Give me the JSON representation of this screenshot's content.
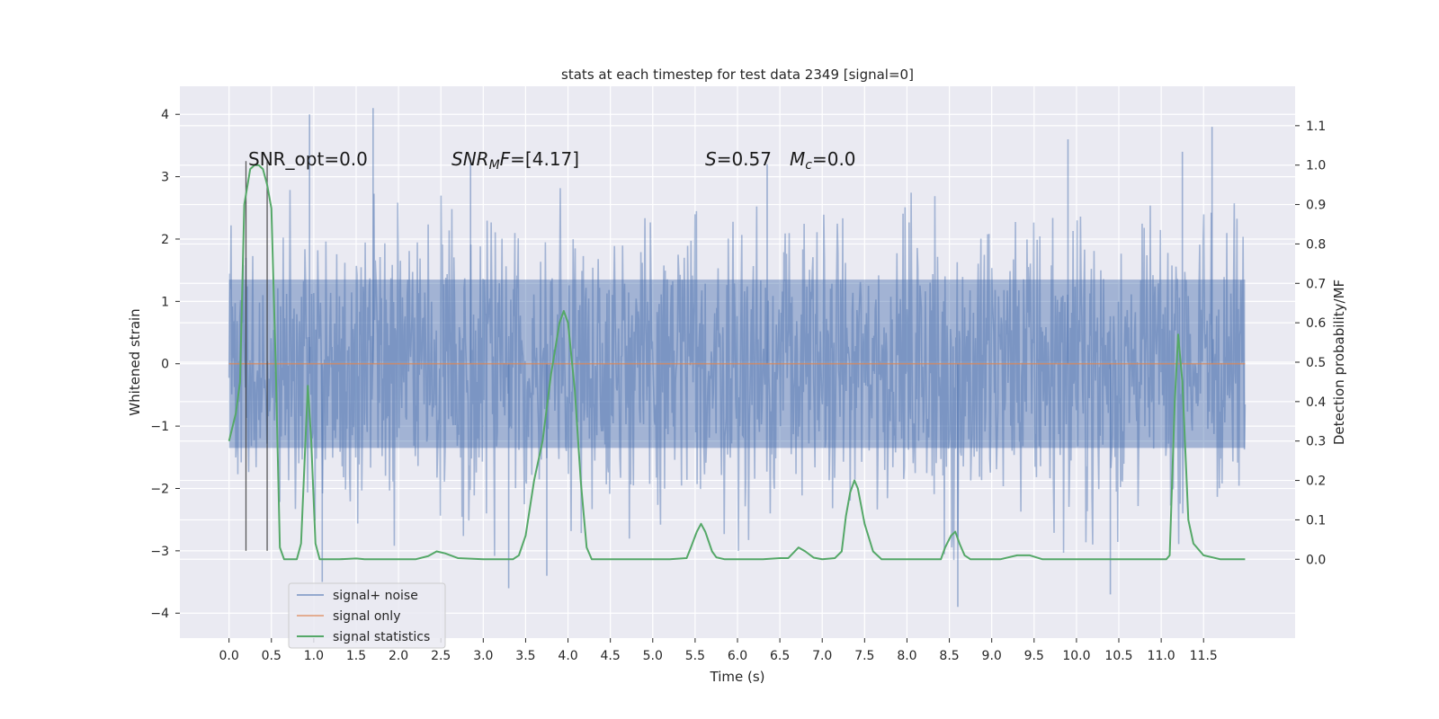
{
  "chart_data": {
    "type": "line",
    "title": "stats at each timestep for test data 2349 [signal=0]",
    "xlabel": "Time (s)",
    "ylabel": "Whitened strain",
    "y2label": "Detection probability/MF",
    "xlim": [
      -0.58,
      12.58
    ],
    "ylim": [
      -4.4,
      4.45
    ],
    "y2lim": [
      -0.2,
      1.2
    ],
    "x_ticks": [
      "0.0",
      "0.5",
      "1.0",
      "1.5",
      "2.0",
      "2.5",
      "3.0",
      "3.5",
      "4.0",
      "4.5",
      "5.0",
      "5.5",
      "6.0",
      "6.5",
      "7.0",
      "7.5",
      "8.0",
      "8.5",
      "9.0",
      "9.5",
      "10.0",
      "10.5",
      "11.0",
      "11.5"
    ],
    "y_ticks": [
      "4",
      "3",
      "2",
      "1",
      "0",
      "−1",
      "−2",
      "−3",
      "−4"
    ],
    "y2_ticks": [
      "1.1",
      "1.0",
      "0.9",
      "0.8",
      "0.7",
      "0.6",
      "0.5",
      "0.4",
      "0.3",
      "0.2",
      "0.1",
      "0.0"
    ],
    "grid": true,
    "legend_position": "lower-left",
    "annotations": {
      "snr_opt": "SNR_opt=0.0",
      "snr_mf_sym": "SNR",
      "snr_mf_sub": "M",
      "snr_mf_tail": "F",
      "snr_mf_value": "=[4.17]",
      "s_sym": "S",
      "s_value": "=0.57",
      "mc_sym": "M",
      "mc_sub": "c",
      "mc_value": "=0.0"
    },
    "series": [
      {
        "name": "signal+ noise",
        "color": "#4c72b0",
        "note": "dense noise trace between roughly -3.9 and 4.1 over 0–12 s",
        "envelope_upper": [
          [
            0.0,
            2.9
          ],
          [
            0.5,
            2.6
          ],
          [
            1.0,
            3.1
          ],
          [
            1.5,
            3.0
          ],
          [
            2.0,
            3.1
          ],
          [
            2.5,
            3.0
          ],
          [
            3.0,
            2.8
          ],
          [
            3.5,
            2.6
          ],
          [
            4.0,
            2.9
          ],
          [
            4.5,
            2.8
          ],
          [
            5.0,
            2.7
          ],
          [
            5.5,
            2.8
          ],
          [
            6.0,
            3.0
          ],
          [
            6.5,
            2.9
          ],
          [
            7.0,
            3.0
          ],
          [
            7.5,
            2.6
          ],
          [
            8.0,
            2.8
          ],
          [
            8.5,
            2.8
          ],
          [
            9.0,
            2.9
          ],
          [
            9.5,
            2.9
          ],
          [
            10.0,
            2.8
          ],
          [
            10.5,
            2.9
          ],
          [
            11.0,
            3.1
          ],
          [
            11.5,
            3.1
          ],
          [
            11.99,
            3.2
          ]
        ],
        "envelope_lower": [
          [
            0.0,
            -2.8
          ],
          [
            0.5,
            -2.7
          ],
          [
            1.0,
            -3.1
          ],
          [
            1.5,
            -3.0
          ],
          [
            2.0,
            -3.0
          ],
          [
            2.5,
            -3.0
          ],
          [
            3.0,
            -3.3
          ],
          [
            3.5,
            -3.2
          ],
          [
            4.0,
            -2.9
          ],
          [
            4.5,
            -2.9
          ],
          [
            5.0,
            -3.2
          ],
          [
            5.5,
            -2.8
          ],
          [
            6.0,
            -3.0
          ],
          [
            6.5,
            -3.2
          ],
          [
            7.0,
            -3.1
          ],
          [
            7.5,
            -2.9
          ],
          [
            8.0,
            -3.0
          ],
          [
            8.5,
            -3.9
          ],
          [
            9.0,
            -3.3
          ],
          [
            9.5,
            -3.0
          ],
          [
            10.0,
            -3.1
          ],
          [
            10.5,
            -3.7
          ],
          [
            11.0,
            -3.1
          ],
          [
            11.5,
            -2.8
          ],
          [
            11.99,
            -2.2
          ]
        ],
        "spikes": [
          [
            0.95,
            4.0
          ],
          [
            1.7,
            4.1
          ],
          [
            1.1,
            -3.5
          ],
          [
            3.3,
            -3.6
          ],
          [
            3.75,
            -3.4
          ],
          [
            8.6,
            -3.9
          ],
          [
            10.4,
            -3.7
          ],
          [
            11.6,
            3.8
          ],
          [
            11.25,
            3.4
          ],
          [
            9.9,
            3.6
          ],
          [
            6.35,
            3.2
          ],
          [
            2.85,
            3.3
          ]
        ]
      },
      {
        "name": "signal only",
        "color": "#dd8452",
        "x": [
          0.0,
          11.99
        ],
        "y": [
          0.0,
          0.0
        ]
      },
      {
        "name": "signal statistics",
        "color": "#55a868",
        "axis": "right",
        "points": [
          [
            0.0,
            0.3
          ],
          [
            0.08,
            0.37
          ],
          [
            0.13,
            0.45
          ],
          [
            0.18,
            0.9
          ],
          [
            0.25,
            0.99
          ],
          [
            0.3,
            1.0
          ],
          [
            0.35,
            1.0
          ],
          [
            0.4,
            0.99
          ],
          [
            0.45,
            0.95
          ],
          [
            0.5,
            0.89
          ],
          [
            0.55,
            0.5
          ],
          [
            0.6,
            0.03
          ],
          [
            0.65,
            0.0
          ],
          [
            0.75,
            0.0
          ],
          [
            0.8,
            0.0
          ],
          [
            0.85,
            0.04
          ],
          [
            0.93,
            0.44
          ],
          [
            0.97,
            0.3
          ],
          [
            1.02,
            0.04
          ],
          [
            1.07,
            0.0
          ],
          [
            1.3,
            0.0
          ],
          [
            1.5,
            0.002
          ],
          [
            1.6,
            0.0
          ],
          [
            2.0,
            0.0
          ],
          [
            2.2,
            0.0
          ],
          [
            2.35,
            0.008
          ],
          [
            2.45,
            0.02
          ],
          [
            2.55,
            0.015
          ],
          [
            2.7,
            0.003
          ],
          [
            3.0,
            0.0
          ],
          [
            3.35,
            0.0
          ],
          [
            3.42,
            0.01
          ],
          [
            3.5,
            0.06
          ],
          [
            3.6,
            0.2
          ],
          [
            3.7,
            0.3
          ],
          [
            3.8,
            0.47
          ],
          [
            3.9,
            0.6
          ],
          [
            3.95,
            0.63
          ],
          [
            4.0,
            0.6
          ],
          [
            4.08,
            0.43
          ],
          [
            4.15,
            0.2
          ],
          [
            4.22,
            0.03
          ],
          [
            4.28,
            0.0
          ],
          [
            4.4,
            0.0
          ],
          [
            5.2,
            0.0
          ],
          [
            5.4,
            0.003
          ],
          [
            5.45,
            0.03
          ],
          [
            5.52,
            0.07
          ],
          [
            5.57,
            0.09
          ],
          [
            5.62,
            0.07
          ],
          [
            5.7,
            0.02
          ],
          [
            5.75,
            0.005
          ],
          [
            5.85,
            0.0
          ],
          [
            6.3,
            0.0
          ],
          [
            6.5,
            0.003
          ],
          [
            6.6,
            0.003
          ],
          [
            6.72,
            0.03
          ],
          [
            6.8,
            0.02
          ],
          [
            6.9,
            0.004
          ],
          [
            7.0,
            0.0
          ],
          [
            7.15,
            0.003
          ],
          [
            7.23,
            0.02
          ],
          [
            7.28,
            0.11
          ],
          [
            7.33,
            0.17
          ],
          [
            7.38,
            0.2
          ],
          [
            7.42,
            0.18
          ],
          [
            7.5,
            0.09
          ],
          [
            7.6,
            0.02
          ],
          [
            7.7,
            0.0
          ],
          [
            8.4,
            0.0
          ],
          [
            8.45,
            0.03
          ],
          [
            8.52,
            0.06
          ],
          [
            8.57,
            0.07
          ],
          [
            8.62,
            0.04
          ],
          [
            8.68,
            0.01
          ],
          [
            8.75,
            0.0
          ],
          [
            9.1,
            0.0
          ],
          [
            9.3,
            0.01
          ],
          [
            9.45,
            0.01
          ],
          [
            9.6,
            0.0
          ],
          [
            11.06,
            0.0
          ],
          [
            11.1,
            0.01
          ],
          [
            11.16,
            0.4
          ],
          [
            11.2,
            0.57
          ],
          [
            11.25,
            0.45
          ],
          [
            11.32,
            0.1
          ],
          [
            11.38,
            0.04
          ],
          [
            11.5,
            0.01
          ],
          [
            11.7,
            0.0
          ],
          [
            11.99,
            0.0
          ]
        ]
      },
      {
        "name": "",
        "color": "#333333",
        "note": "vertical marker lines (unlabelled)",
        "lines": [
          {
            "x": 0.2,
            "y_from": -3.0,
            "y_to": 3.25
          },
          {
            "x": 0.45,
            "y_from": -3.0,
            "y_to": 3.25
          }
        ]
      }
    ]
  }
}
